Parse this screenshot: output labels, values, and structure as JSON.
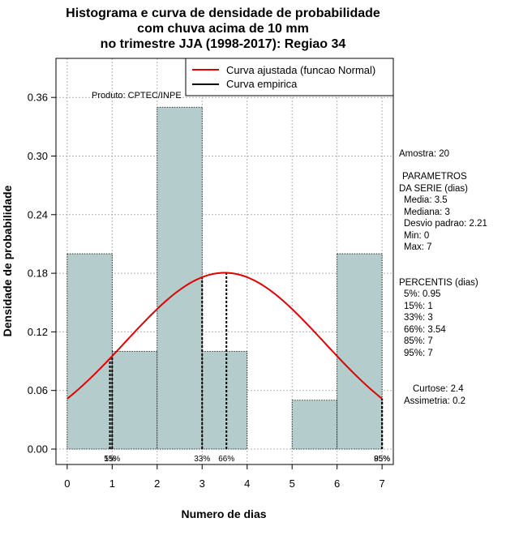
{
  "chart_data": {
    "type": "bar",
    "title_lines": [
      "Histograma e curva de densidade de probabilidade",
      "com chuva acima de 10 mm",
      "no trimestre JJA (1998-2017): Regiao 34"
    ],
    "xlabel": "Numero de dias",
    "ylabel": "Densidade de probabilidade",
    "xlim": [
      -0.25,
      7.25
    ],
    "ylim": [
      0,
      0.4
    ],
    "xticks": [
      "0",
      "1",
      "2",
      "3",
      "4",
      "5",
      "6",
      "7"
    ],
    "yticks": [
      "0.00",
      "0.06",
      "0.12",
      "0.18",
      "0.24",
      "0.30",
      "0.36"
    ],
    "bins": [
      {
        "from": 0,
        "to": 1,
        "density": 0.2
      },
      {
        "from": 1,
        "to": 2,
        "density": 0.1
      },
      {
        "from": 2,
        "to": 3,
        "density": 0.35
      },
      {
        "from": 3,
        "to": 4,
        "density": 0.1
      },
      {
        "from": 4,
        "to": 5,
        "density": 0.0
      },
      {
        "from": 5,
        "to": 6,
        "density": 0.05
      },
      {
        "from": 6,
        "to": 7,
        "density": 0.2
      }
    ],
    "normal_fit": {
      "mean": 3.5,
      "sd": 2.21
    },
    "percentile_lines": [
      {
        "x": 0.95,
        "label": "5%"
      },
      {
        "x": 1,
        "label": "15%"
      },
      {
        "x": 3,
        "label": "33%"
      },
      {
        "x": 3.54,
        "label": "66%"
      },
      {
        "x": 7,
        "label": "85%"
      },
      {
        "x": 7,
        "label": "95%"
      }
    ],
    "legend": [
      {
        "label": "Curva ajustada (funcao Normal)",
        "color": "#e00000"
      },
      {
        "label": "Curva empirica",
        "color": "#000000"
      }
    ],
    "annotation": "Produto: CPTEC/INPE",
    "colors": {
      "bar": "#b4cccc",
      "curve": "#e00000",
      "grid": "#b0b0b0"
    }
  },
  "stats": {
    "amostra": "Amostra: 20",
    "parametros_title": [
      "PARAMETROS",
      "DA SERIE (dias)"
    ],
    "parametros": [
      "Media: 3.5",
      "Mediana: 3",
      "Desvio padrao: 2.21",
      "Min: 0",
      "Max: 7"
    ],
    "percentis_title": "PERCENTIS (dias)",
    "percentis": [
      "5%: 0.95",
      "15%: 1",
      "33%: 3",
      "66%: 3.54",
      "85%: 7",
      "95%: 7"
    ],
    "curtose": "Curtose: 2.4",
    "assimetria": "Assimetria: 0.2"
  }
}
